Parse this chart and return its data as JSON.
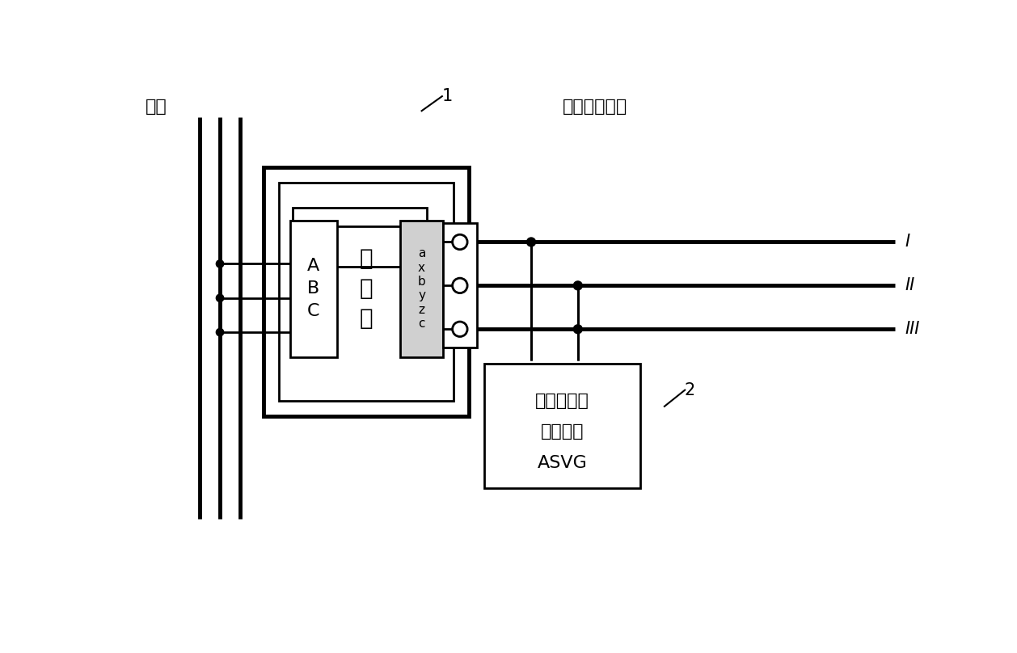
{
  "title_left": "电网",
  "title_right": "变压器二次侧",
  "label_1": "1",
  "label_2": "2",
  "label_I": "I",
  "label_II": "II",
  "label_III": "III",
  "transformer_label": "变\n压\n器",
  "primary_label": "A\nB\nC",
  "secondary_label": "a\nx\nb\ny\nz\nc",
  "asvg_line1": "新型无功功",
  "asvg_line2": "率发生器",
  "asvg_line3": "ASVG",
  "line_color": "#000000",
  "bg_color": "#ffffff",
  "fig_width": 12.58,
  "fig_height": 8.08,
  "dpi": 100
}
